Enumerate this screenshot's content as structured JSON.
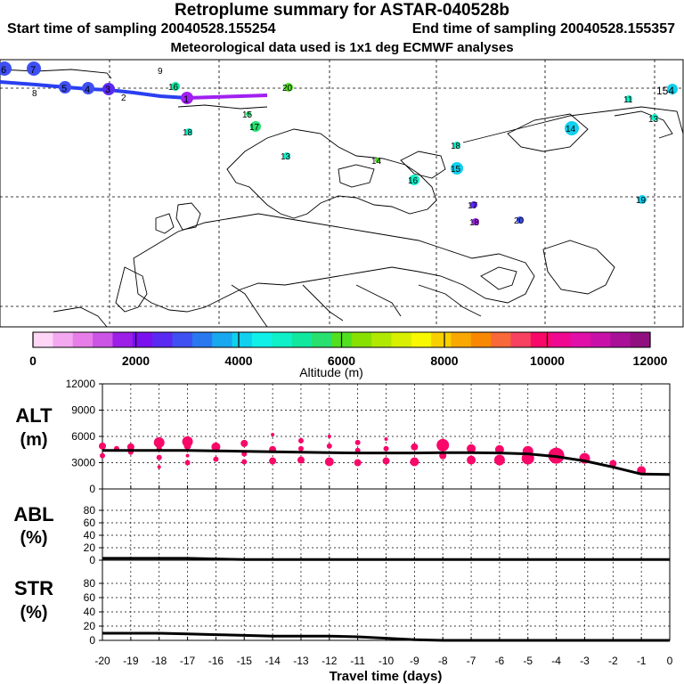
{
  "title": "Retroplume summary for ASTAR-040528b",
  "start_time": "Start time of sampling 20040528.155254",
  "end_time": "End time of sampling 20040528.155357",
  "met_data": "Meteorological data used is 1x1 deg ECMWF analyses",
  "colorbar": {
    "label": "Altitude (m)",
    "ticks": [
      "0",
      "2000",
      "4000",
      "6000",
      "8000",
      "10000",
      "12000"
    ],
    "colors": [
      "#ffd6f5",
      "#f4a8f0",
      "#e77ee8",
      "#cc55e6",
      "#9b1fe6",
      "#7a10f0",
      "#5a2af2",
      "#3f50f2",
      "#2a78f0",
      "#18a8f0",
      "#10d0ee",
      "#10f0e8",
      "#10f0c8",
      "#10e8a0",
      "#28e070",
      "#50e020",
      "#88e000",
      "#b0e800",
      "#d8f000",
      "#f8f800",
      "#f8d000",
      "#f8a800",
      "#f88800",
      "#f86838",
      "#f84060",
      "#f80868",
      "#f00890",
      "#e010a8",
      "#c810a8",
      "#a81098",
      "#901080"
    ]
  },
  "map": {
    "trajectory_labels": [
      {
        "t": "6",
        "lon": -0.0,
        "lat": 0
      },
      {
        "t": "7",
        "lon": 0,
        "lat": 0
      },
      {
        "t": "8",
        "lon": 0,
        "lat": 0
      },
      {
        "t": "5",
        "lon": 0,
        "lat": 0
      },
      {
        "t": "4",
        "lon": 0,
        "lat": 0
      },
      {
        "t": "3",
        "lon": 0,
        "lat": 0
      },
      {
        "t": "2",
        "lon": 0,
        "lat": 0
      },
      {
        "t": "1",
        "lon": 0,
        "lat": 0
      }
    ],
    "cluster_labels": [
      "9",
      "16",
      "20",
      "15",
      "17",
      "18",
      "13",
      "18",
      "14",
      "15",
      "16",
      "14",
      "11",
      "13",
      "154",
      "17",
      "18",
      "20",
      "19"
    ]
  },
  "chart_data": [
    {
      "type": "scatter",
      "panel": "ALT",
      "ylabel": "ALT (m)",
      "ylim": [
        0,
        12000
      ],
      "yticks": [
        "0",
        "3000",
        "6000",
        "9000",
        "12000"
      ],
      "x": [
        -20,
        -19,
        -18,
        -17,
        -16,
        -15,
        -14,
        -13,
        -12,
        -11,
        -10,
        -9,
        -8,
        -7,
        -6,
        -5,
        -4,
        -3,
        -2,
        -1,
        0
      ],
      "mean_line": [
        4400,
        4400,
        4400,
        4400,
        4350,
        4300,
        4250,
        4200,
        4150,
        4100,
        4100,
        4100,
        4150,
        4150,
        4100,
        4000,
        3700,
        3200,
        2500,
        1700,
        1650
      ],
      "points": [
        {
          "x": -20,
          "y": 4900,
          "s": 4
        },
        {
          "x": -20,
          "y": 3800,
          "s": 3
        },
        {
          "x": -19.5,
          "y": 4600,
          "s": 3
        },
        {
          "x": -19,
          "y": 4800,
          "s": 4
        },
        {
          "x": -19,
          "y": 4200,
          "s": 3
        },
        {
          "x": -18,
          "y": 5300,
          "s": 6
        },
        {
          "x": -18,
          "y": 4600,
          "s": 3
        },
        {
          "x": -18,
          "y": 3600,
          "s": 3
        },
        {
          "x": -18,
          "y": 2500,
          "s": 2
        },
        {
          "x": -17,
          "y": 5400,
          "s": 6
        },
        {
          "x": -17,
          "y": 4900,
          "s": 4
        },
        {
          "x": -17,
          "y": 3800,
          "s": 2
        },
        {
          "x": -17,
          "y": 3000,
          "s": 3
        },
        {
          "x": -16,
          "y": 4800,
          "s": 5
        },
        {
          "x": -16,
          "y": 3400,
          "s": 3
        },
        {
          "x": -15,
          "y": 5200,
          "s": 4
        },
        {
          "x": -15,
          "y": 4000,
          "s": 3
        },
        {
          "x": -15,
          "y": 3100,
          "s": 3
        },
        {
          "x": -14,
          "y": 6200,
          "s": 2
        },
        {
          "x": -14,
          "y": 4500,
          "s": 4
        },
        {
          "x": -14,
          "y": 3200,
          "s": 4
        },
        {
          "x": -13,
          "y": 5500,
          "s": 3
        },
        {
          "x": -13,
          "y": 4600,
          "s": 3
        },
        {
          "x": -13,
          "y": 3300,
          "s": 4
        },
        {
          "x": -12,
          "y": 6000,
          "s": 2
        },
        {
          "x": -12,
          "y": 4900,
          "s": 3
        },
        {
          "x": -12,
          "y": 3100,
          "s": 5
        },
        {
          "x": -11,
          "y": 5300,
          "s": 3
        },
        {
          "x": -11,
          "y": 4400,
          "s": 3
        },
        {
          "x": -11,
          "y": 3000,
          "s": 4
        },
        {
          "x": -10,
          "y": 5700,
          "s": 2
        },
        {
          "x": -10,
          "y": 4600,
          "s": 3
        },
        {
          "x": -10,
          "y": 3200,
          "s": 4
        },
        {
          "x": -9,
          "y": 4800,
          "s": 4
        },
        {
          "x": -9,
          "y": 3100,
          "s": 5
        },
        {
          "x": -8,
          "y": 5000,
          "s": 7
        },
        {
          "x": -8,
          "y": 3800,
          "s": 4
        },
        {
          "x": -7,
          "y": 4600,
          "s": 5
        },
        {
          "x": -7,
          "y": 3300,
          "s": 5
        },
        {
          "x": -6,
          "y": 4500,
          "s": 5
        },
        {
          "x": -6,
          "y": 3300,
          "s": 6
        },
        {
          "x": -5,
          "y": 4300,
          "s": 6
        },
        {
          "x": -5,
          "y": 3500,
          "s": 7
        },
        {
          "x": -4,
          "y": 3800,
          "s": 9
        },
        {
          "x": -3,
          "y": 3500,
          "s": 6
        },
        {
          "x": -2,
          "y": 2900,
          "s": 4
        },
        {
          "x": -1,
          "y": 2100,
          "s": 5
        }
      ]
    },
    {
      "type": "line",
      "panel": "ABL",
      "ylabel": "ABL (%)",
      "ylim": [
        0,
        100
      ],
      "yticks": [
        "0",
        "20",
        "40",
        "60",
        "80"
      ],
      "x": [
        -20,
        -19,
        -18,
        -17,
        -16,
        -15,
        -14,
        -13,
        -12,
        -11,
        -10,
        -9,
        -8,
        -7,
        -6,
        -5,
        -4,
        -3,
        -2,
        -1,
        0
      ],
      "values": [
        3,
        3,
        3,
        3,
        2,
        1,
        1,
        1,
        1,
        1,
        1,
        1,
        1,
        1,
        1,
        1,
        1,
        1,
        1,
        1,
        1
      ]
    },
    {
      "type": "line",
      "panel": "STR",
      "ylabel": "STR (%)",
      "ylim": [
        0,
        100
      ],
      "yticks": [
        "0",
        "20",
        "40",
        "60",
        "80"
      ],
      "x": [
        -20,
        -19,
        -18,
        -17,
        -16,
        -15,
        -14,
        -13,
        -12,
        -11,
        -10,
        -9,
        -8,
        -7,
        -6,
        -5,
        -4,
        -3,
        -2,
        -1,
        0
      ],
      "values": [
        10,
        10,
        10,
        9,
        8,
        7,
        6,
        6,
        6,
        5,
        3,
        1,
        0,
        0,
        0,
        0,
        0,
        0,
        0,
        0,
        0
      ],
      "xlabel": "Travel time (days)",
      "xticks": [
        "-20",
        "-19",
        "-18",
        "-17",
        "-16",
        "-15",
        "-14",
        "-13",
        "-12",
        "-11",
        "-10",
        "-9",
        "-8",
        "-7",
        "-6",
        "-5",
        "-4",
        "-3",
        "-2",
        "-1",
        "0"
      ]
    }
  ]
}
